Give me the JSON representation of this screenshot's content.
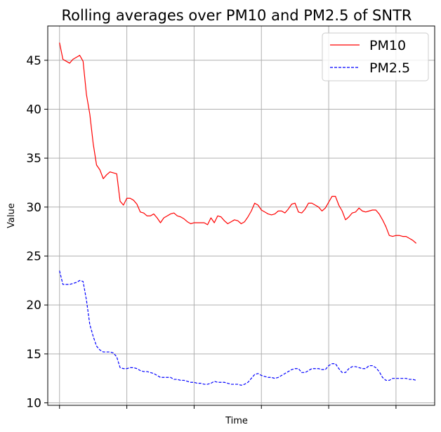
{
  "chart_data": {
    "type": "line",
    "title": "Rolling averages over PM10 and PM2.5 of SNTR",
    "xlabel": "Time",
    "ylabel": "Value",
    "ylim": [
      9.75,
      48.5
    ],
    "xlim": [
      -3.5,
      111.5
    ],
    "yticks": [
      10,
      15,
      20,
      25,
      30,
      35,
      40,
      45
    ],
    "ytick_labels": [
      "10",
      "15",
      "20",
      "25",
      "30",
      "35",
      "40",
      "45"
    ],
    "xticks": [
      0,
      20,
      40,
      60,
      80,
      100
    ],
    "grid": true,
    "legend_position": "top-right",
    "x": [
      0,
      1,
      2,
      3,
      4,
      5,
      6,
      7,
      8,
      9,
      10,
      11,
      12,
      13,
      14,
      15,
      16,
      17,
      18,
      19,
      20,
      21,
      22,
      23,
      24,
      25,
      26,
      27,
      28,
      29,
      30,
      31,
      32,
      33,
      34,
      35,
      36,
      37,
      38,
      39,
      40,
      41,
      42,
      43,
      44,
      45,
      46,
      47,
      48,
      49,
      50,
      51,
      52,
      53,
      54,
      55,
      56,
      57,
      58,
      59,
      60,
      61,
      62,
      63,
      64,
      65,
      66,
      67,
      68,
      69,
      70,
      71,
      72,
      73,
      74,
      75,
      76,
      77,
      78,
      79,
      80,
      81,
      82,
      83,
      84,
      85,
      86,
      87,
      88,
      89,
      90,
      91,
      92,
      93,
      94,
      95,
      96,
      97,
      98,
      99,
      100,
      101,
      102,
      103,
      104,
      105,
      106
    ],
    "series": [
      {
        "name": "PM10",
        "color": "#ff0000",
        "dash": "solid",
        "values": [
          46.8,
          45.1,
          44.9,
          44.7,
          45.1,
          45.3,
          45.5,
          44.9,
          41.5,
          39.5,
          36.5,
          34.3,
          33.8,
          32.9,
          33.3,
          33.6,
          33.5,
          33.4,
          30.6,
          30.2,
          30.9,
          30.9,
          30.7,
          30.3,
          29.5,
          29.4,
          29.1,
          29.1,
          29.3,
          28.9,
          28.4,
          28.9,
          29.1,
          29.3,
          29.4,
          29.1,
          29.0,
          28.8,
          28.5,
          28.3,
          28.4,
          28.4,
          28.4,
          28.4,
          28.2,
          28.9,
          28.4,
          29.1,
          29.0,
          28.6,
          28.3,
          28.5,
          28.7,
          28.6,
          28.3,
          28.5,
          29.0,
          29.6,
          30.4,
          30.2,
          29.7,
          29.5,
          29.3,
          29.2,
          29.3,
          29.6,
          29.6,
          29.4,
          29.8,
          30.3,
          30.4,
          29.5,
          29.4,
          29.8,
          30.4,
          30.4,
          30.2,
          30.0,
          29.6,
          29.9,
          30.5,
          31.1,
          31.1,
          30.2,
          29.6,
          28.7,
          29.0,
          29.4,
          29.5,
          29.9,
          29.6,
          29.5,
          29.6,
          29.7,
          29.7,
          29.3,
          28.7,
          28.0,
          27.1,
          27.0,
          27.1,
          27.1,
          27.0,
          27.0,
          26.8,
          26.6,
          26.3
        ]
      },
      {
        "name": "PM2.5",
        "color": "#0000ff",
        "dash": "dashed",
        "values": [
          23.5,
          22.1,
          22.1,
          22.1,
          22.2,
          22.3,
          22.5,
          22.4,
          20.5,
          18.0,
          16.8,
          15.8,
          15.4,
          15.2,
          15.2,
          15.2,
          15.1,
          14.7,
          13.6,
          13.5,
          13.5,
          13.6,
          13.6,
          13.5,
          13.3,
          13.2,
          13.2,
          13.1,
          13.0,
          12.8,
          12.6,
          12.6,
          12.6,
          12.6,
          12.4,
          12.4,
          12.3,
          12.3,
          12.2,
          12.1,
          12.1,
          12.0,
          12.0,
          11.9,
          11.9,
          12.0,
          12.2,
          12.1,
          12.1,
          12.1,
          12.0,
          11.9,
          11.9,
          11.9,
          11.8,
          11.9,
          12.1,
          12.5,
          12.9,
          13.0,
          12.8,
          12.7,
          12.6,
          12.6,
          12.5,
          12.6,
          12.8,
          13.0,
          13.2,
          13.4,
          13.5,
          13.5,
          13.1,
          13.1,
          13.3,
          13.5,
          13.5,
          13.5,
          13.4,
          13.4,
          13.8,
          14.0,
          14.0,
          13.5,
          13.1,
          13.1,
          13.5,
          13.7,
          13.7,
          13.6,
          13.5,
          13.5,
          13.8,
          13.8,
          13.6,
          13.2,
          12.6,
          12.3,
          12.3,
          12.5,
          12.5,
          12.5,
          12.5,
          12.5,
          12.4,
          12.4,
          12.3
        ]
      }
    ]
  }
}
